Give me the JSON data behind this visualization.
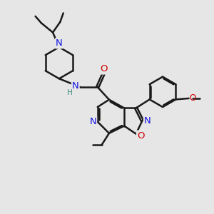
{
  "bg_color": "#e6e6e6",
  "bond_color": "#1a1a1a",
  "bond_width": 1.8,
  "atom_colors": {
    "N": "#1414e6",
    "O": "#cc0000",
    "H": "#3a8a7a"
  },
  "figsize": [
    3.0,
    3.0
  ],
  "dpi": 100,
  "scale": 1.0
}
